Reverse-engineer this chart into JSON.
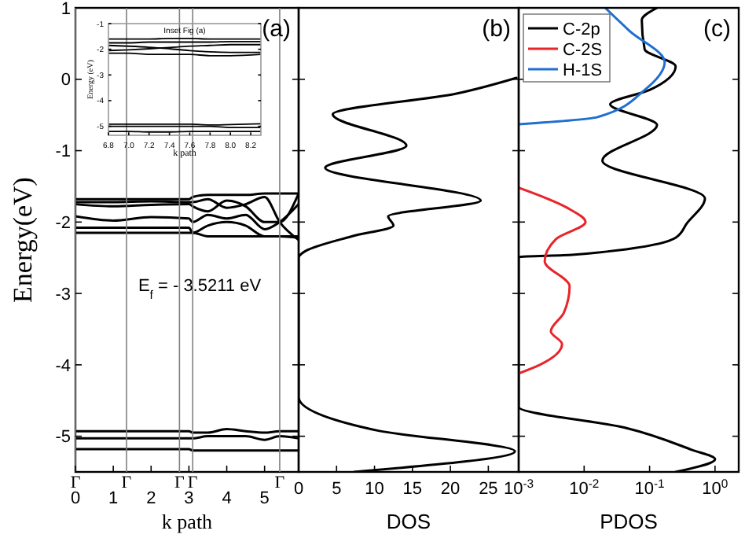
{
  "chart_data": [
    {
      "type": "line",
      "xlabel": "k path",
      "ylabel": "Energy(eV)",
      "xlim": [
        0,
        5.9
      ],
      "ylim": [
        -5.5,
        1
      ],
      "xticks": [
        0,
        1,
        2,
        3,
        4,
        5
      ],
      "yticks": [
        -5,
        -4,
        -3,
        -2,
        -1,
        0,
        1
      ],
      "annotations": [
        "(a)",
        "E$_{f}$ = - 3.5211 eV"
      ],
      "ref_lines": [
        {
          "axis": "x",
          "value": 0,
          "label": "Γ"
        },
        {
          "axis": "x",
          "value": 1.35,
          "label": "Γ"
        },
        {
          "axis": "x",
          "value": 2.75,
          "label": "Γ"
        },
        {
          "axis": "x",
          "value": 3.1,
          "label": "Γ"
        },
        {
          "axis": "x",
          "value": 5.4,
          "label": "Γ"
        }
      ],
      "series": [
        {
          "color": "#000000",
          "x": [
            0,
            1,
            2,
            3,
            3.1,
            3.5,
            4,
            4.5,
            5,
            5.4,
            5.9
          ],
          "values": [
            -1.68,
            -1.68,
            -1.68,
            -1.68,
            -1.65,
            -1.62,
            -1.62,
            -1.62,
            -1.6,
            -1.6,
            -1.6
          ]
        },
        {
          "color": "#000000",
          "x": [
            0,
            1,
            2,
            3,
            3.1,
            3.5,
            4,
            4.5,
            5,
            5.4,
            5.9
          ],
          "values": [
            -1.72,
            -1.72,
            -1.71,
            -1.72,
            -1.72,
            -1.68,
            -1.8,
            -1.75,
            -1.65,
            -2.0,
            -2.25
          ]
        },
        {
          "color": "#000000",
          "x": [
            0,
            1,
            2,
            3,
            3.1,
            3.5,
            4,
            4.5,
            5,
            5.4,
            5.9
          ],
          "values": [
            -1.75,
            -1.78,
            -1.76,
            -1.75,
            -1.78,
            -1.85,
            -1.7,
            -1.78,
            -2.0,
            -2.0,
            -1.6
          ]
        },
        {
          "color": "#000000",
          "x": [
            0,
            1,
            2,
            3,
            3.1,
            3.5,
            4,
            4.5,
            5,
            5.4,
            5.9
          ],
          "values": [
            -1.92,
            -1.98,
            -1.93,
            -1.95,
            -2.0,
            -1.9,
            -1.95,
            -1.9,
            -2.1,
            -2.0,
            -1.75
          ]
        },
        {
          "color": "#000000",
          "x": [
            0,
            1,
            2,
            3,
            3.1,
            3.5,
            4,
            4.5,
            5,
            5.4,
            5.9
          ],
          "values": [
            -2.08,
            -2.08,
            -2.08,
            -2.08,
            -2.15,
            -2.05,
            -2.0,
            -2.05,
            -2.2,
            -2.2,
            -2.2
          ]
        },
        {
          "color": "#000000",
          "x": [
            0,
            1,
            2,
            3,
            3.1,
            3.5,
            4,
            4.5,
            5,
            5.4,
            5.9
          ],
          "values": [
            -2.15,
            -2.15,
            -2.15,
            -2.15,
            -2.15,
            -2.2,
            -2.2,
            -2.2,
            -2.2,
            -2.2,
            -2.22
          ]
        },
        {
          "color": "#000000",
          "x": [
            0,
            1,
            2,
            3,
            3.1,
            3.5,
            4,
            4.5,
            5,
            5.4,
            5.9
          ],
          "values": [
            -4.93,
            -4.93,
            -4.93,
            -4.93,
            -4.95,
            -4.95,
            -4.9,
            -4.93,
            -4.95,
            -4.93,
            -4.93
          ]
        },
        {
          "color": "#000000",
          "x": [
            0,
            1,
            2,
            3,
            3.1,
            3.5,
            4,
            4.5,
            5,
            5.4,
            5.9
          ],
          "values": [
            -5.03,
            -5.03,
            -5.03,
            -5.03,
            -5.03,
            -5.0,
            -5.0,
            -5.0,
            -5.05,
            -5.0,
            -5.03
          ]
        },
        {
          "color": "#000000",
          "x": [
            0,
            1,
            2,
            3,
            3.1,
            3.5,
            4,
            4.5,
            5,
            5.4,
            5.9
          ],
          "values": [
            -5.18,
            -5.18,
            -5.18,
            -5.18,
            -5.2,
            -5.2,
            -5.2,
            -5.2,
            -5.2,
            -5.2,
            -5.2
          ]
        }
      ],
      "tick_labels": true
    },
    {
      "type": "line",
      "xlabel": "DOS",
      "xlim": [
        0,
        29
      ],
      "ylim": [
        -5.5,
        1
      ],
      "xticks": [
        0,
        5,
        10,
        15,
        20,
        25
      ],
      "yticks": [
        -5,
        -4,
        -3,
        -2,
        -1,
        0,
        1
      ],
      "tick_labels": "x",
      "annotations": [
        "(b)"
      ],
      "series": [
        {
          "color": "#000000",
          "x": [
            28.7,
            20.8,
            4.5,
            14.2,
            3.5,
            24,
            11.8,
            12.5,
            7,
            1,
            0,
            0,
            10.4,
            28.5,
            7.3
          ],
          "values": [
            0.02,
            -0.2,
            -0.49,
            -0.93,
            -1.24,
            -1.7,
            -1.92,
            -2.05,
            -2.2,
            -2.4,
            -2.5,
            -4.45,
            -4.92,
            -5.21,
            -5.5
          ]
        }
      ]
    },
    {
      "type": "line",
      "xlabel": "PDOS",
      "log": "x",
      "xlim": [
        0.001,
        2.3
      ],
      "ylim": [
        -5.5,
        1
      ],
      "xticks": [
        {
          "value": 0.001,
          "label": "10$^{-3}$"
        },
        {
          "value": 0.01,
          "label": "10$^{-2}$"
        },
        {
          "value": 0.1,
          "label": "10$^{-1}$"
        },
        {
          "value": 1,
          "label": "10$^{0}$"
        }
      ],
      "yticks": [
        -5,
        -4,
        -3,
        -2,
        -1,
        0,
        1
      ],
      "tick_labels": "x",
      "legend": "top left",
      "annotations": [
        "(c)"
      ],
      "series": [
        {
          "name": "C-2p",
          "color": "#000000",
          "x": [
            0.13,
            0.076,
            0.084,
            0.25,
            0.1,
            0.025,
            0.13,
            0.019,
            0.7,
            0.37,
            0.25,
            0.0065,
            0.001,
            0.001,
            0.042,
            0.44,
            1.0,
            0.25
          ],
          "values": [
            1.0,
            0.83,
            0.42,
            0.18,
            -0.15,
            -0.35,
            -0.64,
            -1.14,
            -1.67,
            -2.02,
            -2.22,
            -2.46,
            -2.49,
            -4.59,
            -4.88,
            -5.19,
            -5.32,
            -5.5
          ]
        },
        {
          "name": "C-2S",
          "color": "#e8252a",
          "x": [
            0.001,
            0.0055,
            0.0105,
            0.0037,
            0.0025,
            0.006,
            0.0049,
            0.0031,
            0.0046,
            0.0021,
            0.001
          ],
          "values": [
            -1.52,
            -1.8,
            -2.0,
            -2.24,
            -2.55,
            -2.9,
            -3.27,
            -3.53,
            -3.71,
            -4.0,
            -4.12
          ]
        },
        {
          "name": "H-1S",
          "color": "#1f6fd1",
          "x": [
            0.021,
            0.049,
            0.17,
            0.084,
            0.016,
            0.001
          ],
          "values": [
            1.0,
            0.68,
            0.24,
            -0.15,
            -0.53,
            -0.63
          ]
        }
      ]
    },
    {
      "type": "line",
      "title": "Inset Fig (a)",
      "xlabel": "k path",
      "ylabel": "Energy (eV)",
      "xlim": [
        6.8,
        8.3
      ],
      "ylim": [
        -5.35,
        -1
      ],
      "xticks": [
        6.8,
        {
          "value": 7,
          "label": "7.0"
        },
        7.2,
        7.4,
        7.6,
        7.8,
        {
          "value": 8,
          "label": "8.0"
        },
        8.2
      ],
      "yticks": [
        -5,
        -4,
        -3,
        -2,
        -1
      ],
      "series": [
        {
          "color": "#000000",
          "x": [
            6.8,
            7.0,
            7.2,
            7.4,
            7.6,
            7.8,
            8.0,
            8.3
          ],
          "values": [
            -1.6,
            -1.6,
            -1.6,
            -1.58,
            -1.58,
            -1.6,
            -1.6,
            -1.6
          ]
        },
        {
          "color": "#000000",
          "x": [
            6.8,
            7.0,
            7.2,
            7.4,
            7.6,
            7.8,
            8.0,
            8.3
          ],
          "values": [
            -1.75,
            -1.75,
            -1.72,
            -1.72,
            -1.72,
            -1.72,
            -1.7,
            -1.7
          ]
        },
        {
          "color": "#000000",
          "x": [
            6.8,
            7.0,
            7.2,
            7.4,
            7.6,
            7.8,
            8.0,
            8.3
          ],
          "values": [
            -1.85,
            -1.88,
            -1.92,
            -1.98,
            -2.05,
            -2.1,
            -2.12,
            -2.12
          ]
        },
        {
          "color": "#000000",
          "x": [
            6.8,
            7.0,
            7.2,
            7.4,
            7.6,
            7.8,
            8.0,
            8.3
          ],
          "values": [
            -2.05,
            -2.02,
            -1.98,
            -1.93,
            -1.88,
            -1.85,
            -1.82,
            -1.82
          ]
        },
        {
          "color": "#000000",
          "x": [
            6.8,
            7.0,
            7.2,
            7.4,
            7.6,
            7.8,
            8.0,
            8.3
          ],
          "values": [
            -2.15,
            -2.15,
            -2.2,
            -2.2,
            -2.2,
            -2.25,
            -2.25,
            -2.2
          ]
        },
        {
          "color": "#000000",
          "x": [
            6.8,
            7.0,
            7.2,
            7.4,
            7.6,
            7.8,
            8.0,
            8.3
          ],
          "values": [
            -4.92,
            -4.92,
            -4.92,
            -4.92,
            -4.92,
            -4.95,
            -4.93,
            -4.9
          ]
        },
        {
          "color": "#000000",
          "x": [
            6.8,
            7.0,
            7.2,
            7.4,
            7.6,
            7.8,
            8.0,
            8.3
          ],
          "values": [
            -5.0,
            -5.0,
            -5.0,
            -5.0,
            -5.0,
            -5.0,
            -5.05,
            -5.05
          ]
        },
        {
          "color": "#000000",
          "x": [
            6.8,
            7.0,
            7.2,
            7.4,
            7.6,
            7.8,
            8.0,
            8.3
          ],
          "values": [
            -5.2,
            -5.2,
            -5.22,
            -5.22,
            -5.2,
            -5.2,
            -5.2,
            -5.2
          ]
        }
      ]
    }
  ]
}
